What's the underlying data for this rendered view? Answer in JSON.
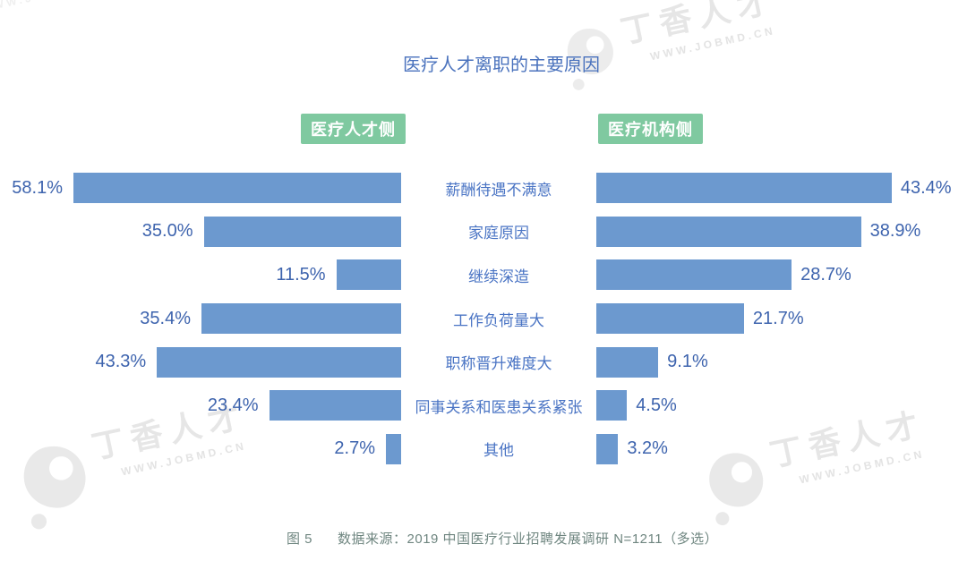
{
  "title": "医疗人才离职的主要原因",
  "panel_headers": {
    "left": "医疗人才侧",
    "right": "医疗机构侧"
  },
  "watermark": {
    "brand": "丁香人才",
    "url": "WWW.JOBMD.CN"
  },
  "footer": {
    "figure_label": "图 5",
    "source": "数据来源：2019 中国医疗行业招聘发展调研 N=1211（多选）"
  },
  "colors": {
    "bar": "#6C99CF",
    "header_badge": "#7FC9A0",
    "title_text": "#4A72BD",
    "value_text": "#3E64AE",
    "category_text": "#4A74C4",
    "footer_text": "#6F8680",
    "watermark": "#E6E6E6"
  },
  "chart_data": {
    "type": "bar",
    "subtype": "butterfly",
    "orientation": "horizontal",
    "title": "医疗人才离职的主要原因",
    "categories": [
      "薪酬待遇不满意",
      "家庭原因",
      "继续深造",
      "工作负荷量大",
      "职称晋升难度大",
      "同事关系和医患关系紧张",
      "其他"
    ],
    "series": [
      {
        "name": "医疗人才侧",
        "side": "left",
        "values": [
          58.1,
          35.0,
          11.5,
          35.4,
          43.3,
          23.4,
          2.7
        ],
        "labels": [
          "58.1%",
          "35.0%",
          "11.5%",
          "35.4%",
          "43.3%",
          "23.4%",
          "2.7%"
        ]
      },
      {
        "name": "医疗机构侧",
        "side": "right",
        "values": [
          43.4,
          38.9,
          28.7,
          21.7,
          9.1,
          4.5,
          3.2
        ],
        "labels": [
          "43.4%",
          "38.9%",
          "28.7%",
          "21.7%",
          "9.1%",
          "4.5%",
          "3.2%"
        ]
      }
    ],
    "value_suffix": "%",
    "grid": false,
    "legend_position": "top",
    "xlim_left": [
      0,
      60
    ],
    "xlim_right": [
      0,
      45
    ]
  }
}
